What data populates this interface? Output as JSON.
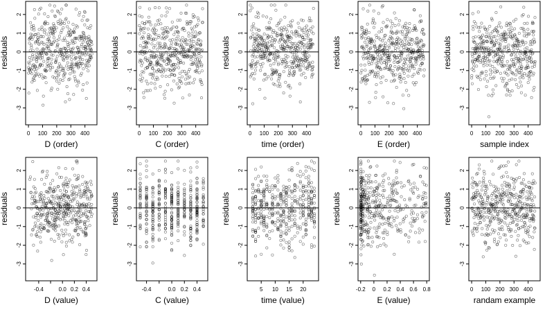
{
  "chart_data": [
    {
      "type": "scatter",
      "xlabel": "D (order)",
      "ylabel": "residuals",
      "xlim": [
        -20,
        485
      ],
      "ylim": [
        -3.9,
        2.7
      ],
      "xticks": [
        0,
        100,
        200,
        300,
        400
      ],
      "yticks": [
        -3,
        -2,
        -1,
        0,
        1,
        2
      ],
      "hline": 0,
      "n_points": 450,
      "pattern": "order",
      "seed": 11
    },
    {
      "type": "scatter",
      "xlabel": "C (order)",
      "ylabel": "residuals",
      "xlim": [
        -20,
        485
      ],
      "ylim": [
        -3.9,
        2.7
      ],
      "xticks": [
        0,
        100,
        200,
        300,
        400
      ],
      "yticks": [
        -3,
        -2,
        -1,
        0,
        1,
        2
      ],
      "hline": 0,
      "n_points": 450,
      "pattern": "order",
      "seed": 12
    },
    {
      "type": "scatter",
      "xlabel": "time (order)",
      "ylabel": "residuals",
      "xlim": [
        -20,
        485
      ],
      "ylim": [
        -3.9,
        2.7
      ],
      "xticks": [
        0,
        100,
        200,
        300,
        400
      ],
      "yticks": [
        -3,
        -2,
        -1,
        0,
        1,
        2
      ],
      "hline": 0,
      "n_points": 450,
      "pattern": "order",
      "seed": 13
    },
    {
      "type": "scatter",
      "xlabel": "E (order)",
      "ylabel": "residuals",
      "xlim": [
        -20,
        485
      ],
      "ylim": [
        -3.9,
        2.7
      ],
      "xticks": [
        0,
        100,
        200,
        300,
        400
      ],
      "yticks": [
        -3,
        -2,
        -1,
        0,
        1,
        2
      ],
      "hline": 0,
      "n_points": 450,
      "pattern": "order",
      "seed": 14
    },
    {
      "type": "scatter",
      "xlabel": "sample index",
      "ylabel": "residuals",
      "xlim": [
        -20,
        485
      ],
      "ylim": [
        -3.9,
        2.7
      ],
      "xticks": [
        0,
        100,
        200,
        300,
        400
      ],
      "yticks": [
        -3,
        -2,
        -1,
        0,
        1,
        2
      ],
      "hline": 0,
      "n_points": 450,
      "pattern": "order",
      "seed": 15
    },
    {
      "type": "scatter",
      "xlabel": "D (value)",
      "ylabel": "residuals",
      "xlim": [
        -0.62,
        0.58
      ],
      "ylim": [
        -3.9,
        2.7
      ],
      "xticks": [
        -0.4,
        -0.2,
        0.0,
        0.2,
        0.4
      ],
      "xtick_labels": [
        "-0.4",
        "",
        "0.0",
        "0.2",
        "0.4"
      ],
      "yticks": [
        -3,
        -2,
        -1,
        0,
        1,
        2
      ],
      "hline": 0,
      "n_points": 450,
      "pattern": "value_continuous",
      "x_range": [
        -0.55,
        0.5
      ],
      "seed": 21
    },
    {
      "type": "scatter",
      "xlabel": "C (value)",
      "ylabel": "residuals",
      "xlim": [
        -0.56,
        0.57
      ],
      "ylim": [
        -3.9,
        2.7
      ],
      "xticks": [
        -0.4,
        -0.2,
        0.0,
        0.2,
        0.4
      ],
      "xtick_labels": [
        "-0.4",
        "",
        "0.0",
        "0.2",
        "0.4"
      ],
      "yticks": [
        -3,
        -2,
        -1,
        0,
        1,
        2
      ],
      "hline": 0,
      "n_points": 450,
      "pattern": "value_discrete",
      "x_levels": [
        -0.5,
        -0.4,
        -0.3,
        -0.2,
        -0.1,
        0.0,
        0.1,
        0.2,
        0.3,
        0.4,
        0.5
      ],
      "seed": 22
    },
    {
      "type": "scatter",
      "xlabel": "time (value)",
      "ylabel": "residuals",
      "xlim": [
        0,
        25.5
      ],
      "ylim": [
        -3.9,
        2.7
      ],
      "xticks": [
        5,
        10,
        15,
        20
      ],
      "yticks": [
        -3,
        -2,
        -1,
        0,
        1,
        2
      ],
      "hline": 0,
      "n_points": 450,
      "pattern": "value_discrete",
      "x_levels": [
        2,
        3,
        4,
        5,
        6,
        7,
        8,
        9,
        10,
        11,
        12,
        13,
        14,
        15,
        16,
        17,
        18,
        19,
        20,
        21,
        22,
        23,
        24
      ],
      "seed": 23
    },
    {
      "type": "scatter",
      "xlabel": "E (value)",
      "ylabel": "residuals",
      "xlim": [
        -0.24,
        0.84
      ],
      "ylim": [
        -3.9,
        2.7
      ],
      "xticks": [
        -0.2,
        0.0,
        0.2,
        0.4,
        0.6,
        0.8
      ],
      "yticks": [
        -3,
        -2,
        -1,
        0,
        1,
        2
      ],
      "hline": 0,
      "n_points": 450,
      "pattern": "value_skewed",
      "x_range": [
        -0.2,
        0.8
      ],
      "seed": 24
    },
    {
      "type": "scatter",
      "xlabel": "randam example",
      "ylabel": "residuals",
      "xlim": [
        -20,
        485
      ],
      "ylim": [
        -3.9,
        2.7
      ],
      "xticks": [
        0,
        100,
        200,
        300,
        400
      ],
      "yticks": [
        -3,
        -2,
        -1,
        0,
        1,
        2
      ],
      "hline": 0,
      "n_points": 450,
      "pattern": "order",
      "seed": 25
    }
  ]
}
